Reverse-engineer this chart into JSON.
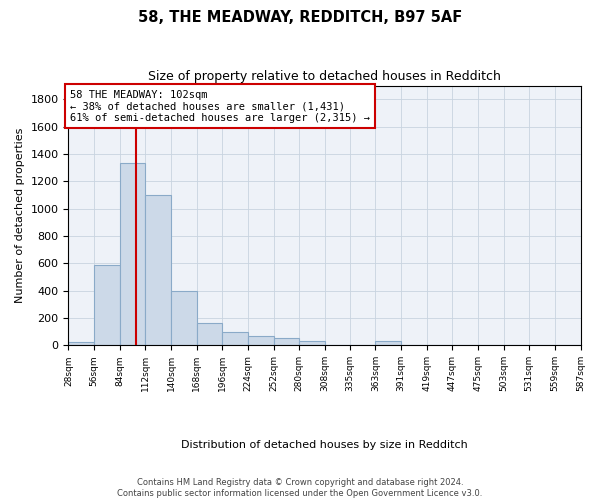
{
  "title": "58, THE MEADWAY, REDDITCH, B97 5AF",
  "subtitle": "Size of property relative to detached houses in Redditch",
  "xlabel": "Distribution of detached houses by size in Redditch",
  "ylabel": "Number of detached properties",
  "bar_color": "#ccd9e8",
  "bar_edge_color": "#8aaac8",
  "annotation_box_color": "#cc0000",
  "vline_color": "#cc0000",
  "grid_color": "#c8d4e0",
  "background_color": "#eef2f8",
  "bins_left": [
    28,
    56,
    84,
    112,
    140,
    168,
    196,
    224,
    252,
    280,
    308,
    335,
    363,
    391,
    419,
    447,
    475,
    503,
    531,
    559
  ],
  "bin_width": 28,
  "values": [
    25,
    590,
    1330,
    1100,
    400,
    160,
    100,
    65,
    50,
    30,
    0,
    0,
    30,
    0,
    0,
    0,
    0,
    0,
    0,
    0
  ],
  "property_size": 102,
  "annotation_text": "58 THE MEADWAY: 102sqm\n← 38% of detached houses are smaller (1,431)\n61% of semi-detached houses are larger (2,315) →",
  "ylim": [
    0,
    1900
  ],
  "yticks": [
    0,
    200,
    400,
    600,
    800,
    1000,
    1200,
    1400,
    1600,
    1800
  ],
  "tick_labels": [
    "28sqm",
    "56sqm",
    "84sqm",
    "112sqm",
    "140sqm",
    "168sqm",
    "196sqm",
    "224sqm",
    "252sqm",
    "280sqm",
    "308sqm",
    "335sqm",
    "363sqm",
    "391sqm",
    "419sqm",
    "447sqm",
    "475sqm",
    "503sqm",
    "531sqm",
    "559sqm",
    "587sqm"
  ],
  "footer_line1": "Contains HM Land Registry data © Crown copyright and database right 2024.",
  "footer_line2": "Contains public sector information licensed under the Open Government Licence v3.0."
}
